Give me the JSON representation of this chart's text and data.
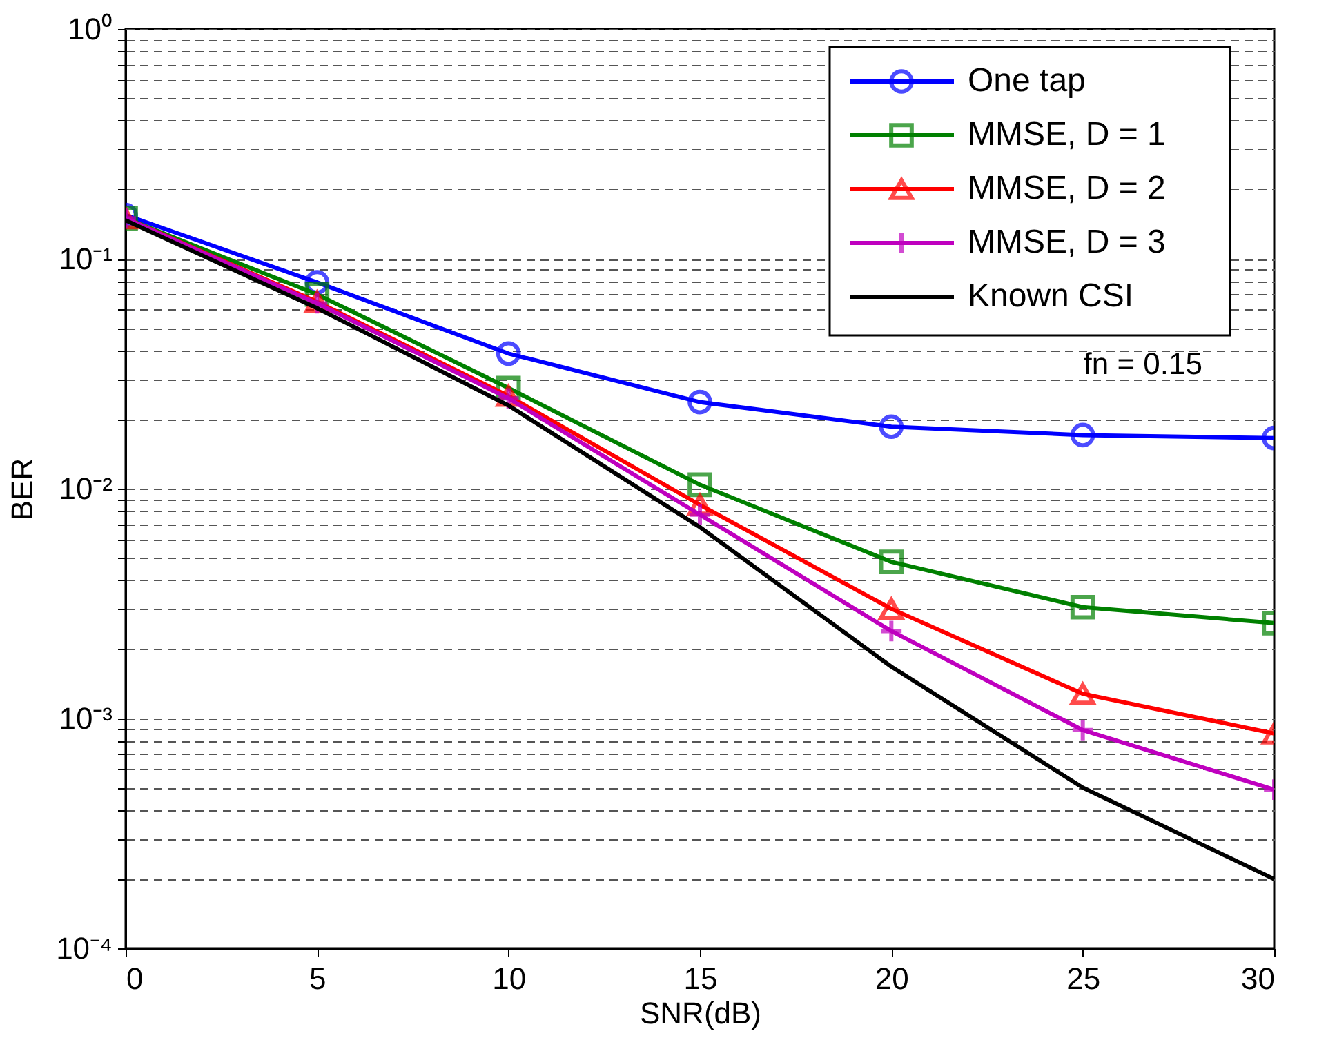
{
  "chart_data": {
    "type": "line",
    "xlabel": "SNR(dB)",
    "ylabel": "BER",
    "x": [
      0,
      5,
      10,
      15,
      20,
      25,
      30
    ],
    "series": [
      {
        "name": "One tap",
        "color": "#0000ff",
        "marker": "circle",
        "values": [
          0.155,
          0.079,
          0.0387,
          0.0238,
          0.0186,
          0.0171,
          0.0166
        ]
      },
      {
        "name": "MMSE, D = 1",
        "color": "#008000",
        "marker": "square",
        "values": [
          0.15,
          0.07,
          0.0274,
          0.0104,
          0.0048,
          0.00305,
          0.0026
        ]
      },
      {
        "name": "MMSE, D = 2",
        "color": "#ff0000",
        "marker": "triangle",
        "values": [
          0.15,
          0.065,
          0.0253,
          0.0085,
          0.003,
          0.00128,
          0.00086
        ]
      },
      {
        "name": "MMSE, D = 3",
        "color": "#bf00bf",
        "marker": "cross",
        "values": [
          0.15,
          0.064,
          0.0247,
          0.0077,
          0.0024,
          0.00089,
          0.00049
        ]
      },
      {
        "name": "Known CSI",
        "color": "#000000",
        "marker": "none",
        "values": [
          0.147,
          0.061,
          0.023,
          0.0068,
          0.00168,
          0.0005,
          0.0002
        ]
      }
    ],
    "xlim": [
      0,
      30
    ],
    "xticks": [
      0,
      5,
      10,
      15,
      20,
      25,
      30
    ],
    "ylim": [
      0.0001,
      1
    ],
    "log": "y",
    "yticks": [
      {
        "value": 0.0001,
        "label": "10⁻⁴"
      },
      {
        "value": 0.0002,
        "label": null
      },
      {
        "value": 0.0003,
        "label": null
      },
      {
        "value": 0.0004,
        "label": null
      },
      {
        "value": 0.0005,
        "label": null
      },
      {
        "value": 0.0006,
        "label": null
      },
      {
        "value": 0.0007,
        "label": null
      },
      {
        "value": 0.0008,
        "label": null
      },
      {
        "value": 0.0009,
        "label": null
      },
      {
        "value": 0.001,
        "label": "10⁻³"
      },
      {
        "value": 0.002,
        "label": null
      },
      {
        "value": 0.003,
        "label": null
      },
      {
        "value": 0.004,
        "label": null
      },
      {
        "value": 0.005,
        "label": null
      },
      {
        "value": 0.006,
        "label": null
      },
      {
        "value": 0.007,
        "label": null
      },
      {
        "value": 0.008,
        "label": null
      },
      {
        "value": 0.009,
        "label": null
      },
      {
        "value": 0.01,
        "label": "10⁻²"
      },
      {
        "value": 0.02,
        "label": null
      },
      {
        "value": 0.03,
        "label": null
      },
      {
        "value": 0.04,
        "label": null
      },
      {
        "value": 0.05,
        "label": null
      },
      {
        "value": 0.06,
        "label": null
      },
      {
        "value": 0.07,
        "label": null
      },
      {
        "value": 0.08,
        "label": null
      },
      {
        "value": 0.09,
        "label": null
      },
      {
        "value": 0.1,
        "label": "10⁻¹"
      },
      {
        "value": 0.2,
        "label": null
      },
      {
        "value": 0.3,
        "label": null
      },
      {
        "value": 0.4,
        "label": null
      },
      {
        "value": 0.5,
        "label": null
      },
      {
        "value": 0.6,
        "label": null
      },
      {
        "value": 0.7,
        "label": null
      },
      {
        "value": 0.8,
        "label": null
      },
      {
        "value": 0.9,
        "label": null
      },
      {
        "value": 1,
        "label": "10⁰"
      }
    ],
    "grid": "y",
    "legend": "top right",
    "line_style": "solid",
    "annotations": [
      "fn = 0.15"
    ]
  }
}
